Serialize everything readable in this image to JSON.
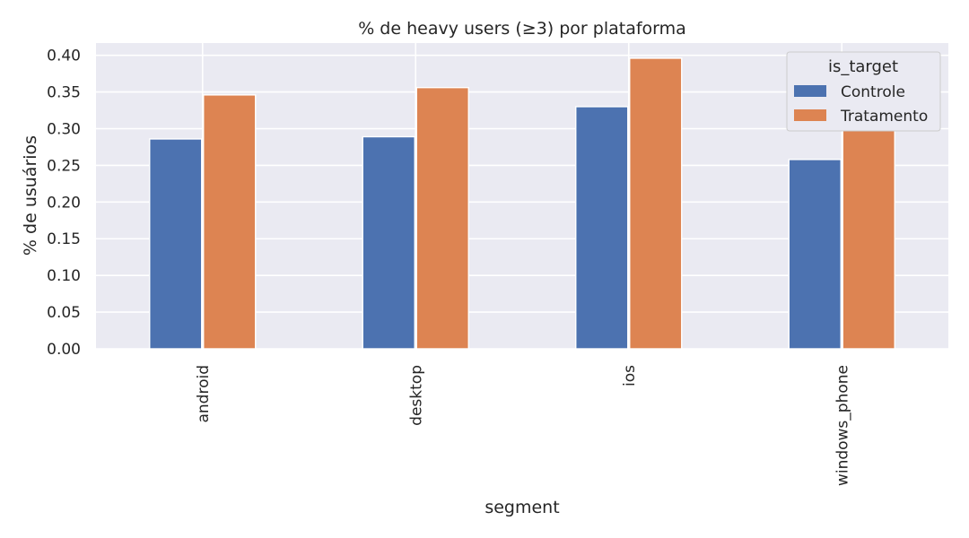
{
  "chart_data": {
    "type": "bar",
    "title": "% de heavy users (≥3) por plataforma",
    "xlabel": "segment",
    "ylabel": "% de usuários",
    "categories": [
      "android",
      "desktop",
      "ios",
      "windows_phone"
    ],
    "series": [
      {
        "name": "Controle",
        "color": "#4c72b0",
        "values": [
          0.286,
          0.289,
          0.33,
          0.258
        ]
      },
      {
        "name": "Tratamento",
        "color": "#dd8452",
        "values": [
          0.346,
          0.356,
          0.396,
          0.337
        ]
      }
    ],
    "ylim": [
      0,
      0.4167
    ],
    "yticks": [
      "0.00",
      "0.05",
      "0.10",
      "0.15",
      "0.20",
      "0.25",
      "0.30",
      "0.35",
      "0.40"
    ],
    "legend": {
      "title": "is_target",
      "placement": "top-right"
    },
    "grid": true,
    "background": "#eaeaf2"
  }
}
